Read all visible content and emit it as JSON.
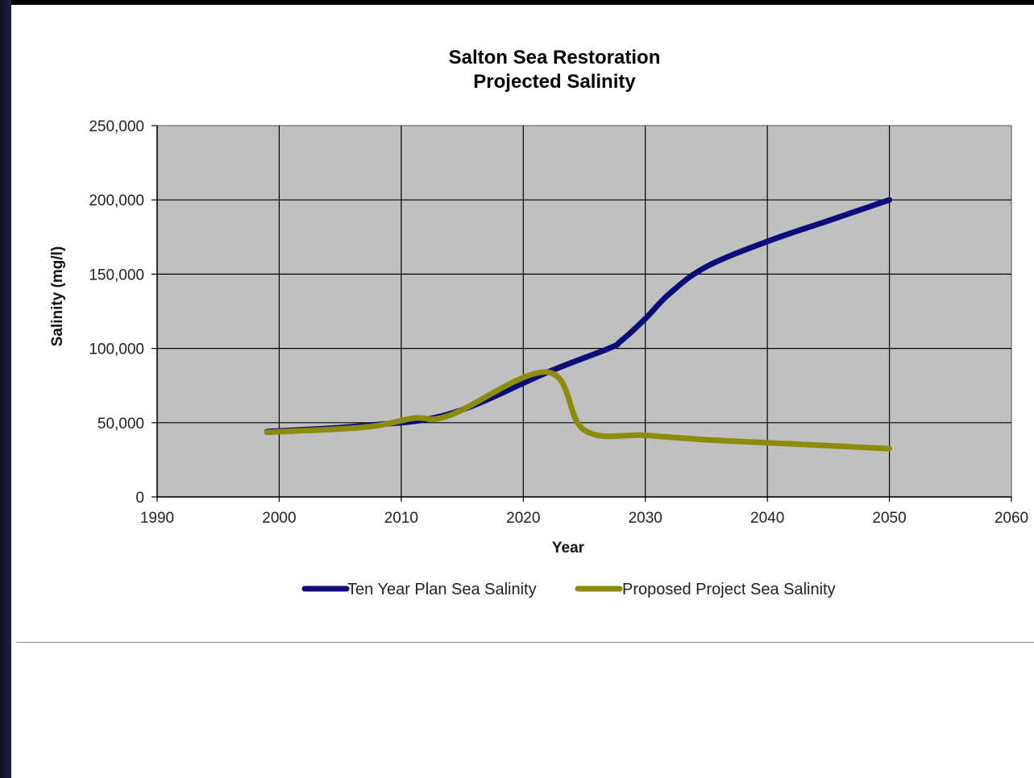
{
  "chart_data": {
    "type": "line",
    "title": "Salton Sea Restoration",
    "subtitle": "Projected Salinity",
    "xlabel": "Year",
    "ylabel": "Salinity (mg/l)",
    "xlim": [
      1990,
      2060
    ],
    "ylim": [
      0,
      250000
    ],
    "x_ticks": [
      "1990",
      "2000",
      "2010",
      "2020",
      "2030",
      "2040",
      "2050",
      "2060"
    ],
    "y_ticks": [
      "0",
      "50,000",
      "100,000",
      "150,000",
      "200,000",
      "250,000"
    ],
    "grid": true,
    "plot_background": "#c0c0c0",
    "legend_position": "bottom",
    "series": [
      {
        "name": "Ten Year Plan Sea Salinity",
        "color": "#0b0b7a",
        "points": [
          [
            1999,
            44000
          ],
          [
            2007,
            48000
          ],
          [
            2014,
            56000
          ],
          [
            2022,
            84000
          ],
          [
            2027,
            100000
          ],
          [
            2028,
            105000
          ],
          [
            2030,
            120000
          ],
          [
            2032,
            137000
          ],
          [
            2035,
            155000
          ],
          [
            2040,
            172000
          ],
          [
            2045,
            186000
          ],
          [
            2050,
            200000
          ]
        ]
      },
      {
        "name": "Proposed Project Sea Salinity",
        "color": "#8c8c0a",
        "points": [
          [
            1999,
            43500
          ],
          [
            2007,
            47000
          ],
          [
            2011,
            53000
          ],
          [
            2014,
            55000
          ],
          [
            2022,
            84000
          ],
          [
            2025,
            45000
          ],
          [
            2030,
            41500
          ],
          [
            2035,
            38500
          ],
          [
            2040,
            36500
          ],
          [
            2045,
            34500
          ],
          [
            2050,
            32500
          ]
        ]
      }
    ]
  }
}
